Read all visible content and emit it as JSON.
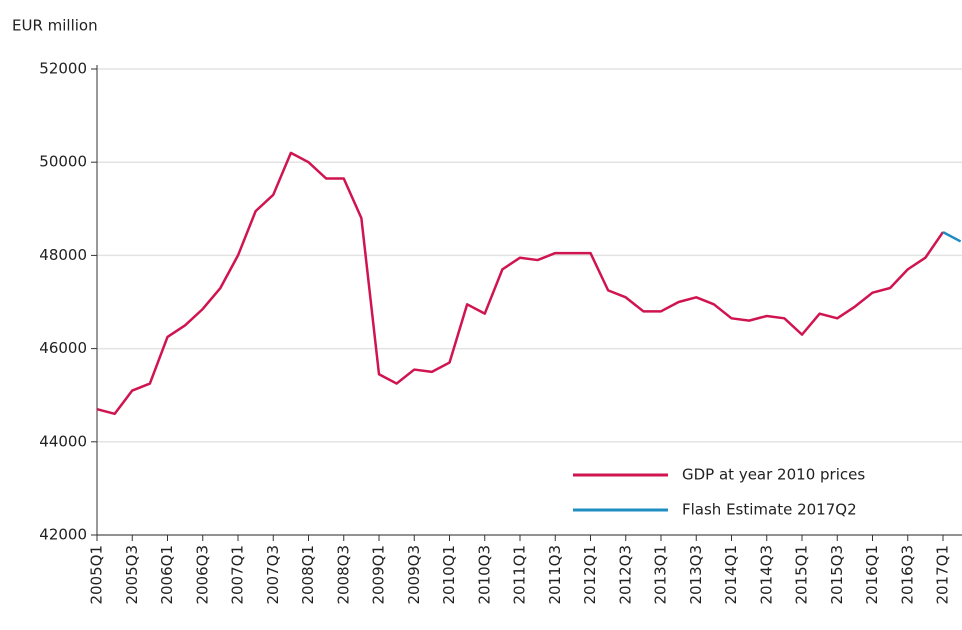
{
  "chart_data": {
    "type": "line",
    "y_label": "EUR million",
    "categories": [
      "2005Q1",
      null,
      "2005Q3",
      null,
      "2006Q1",
      null,
      "2006Q3",
      null,
      "2007Q1",
      null,
      "2007Q3",
      null,
      "2008Q1",
      null,
      "2008Q3",
      null,
      "2009Q1",
      null,
      "2009Q3",
      null,
      "2010Q1",
      null,
      "2010Q3",
      null,
      "2011Q1",
      null,
      "2011Q3",
      null,
      "2012Q1",
      null,
      "2012Q3",
      null,
      "2013Q1",
      null,
      "2013Q3",
      null,
      "2014Q1",
      null,
      "2014Q3",
      null,
      "2015Q1",
      null,
      "2015Q3",
      null,
      "2016Q1",
      null,
      "2016Q3",
      null,
      "2017Q1",
      null
    ],
    "series": [
      {
        "name": "GDP at year 2010 prices",
        "color": "#cf1450",
        "values": [
          44700,
          44600,
          45100,
          45250,
          46250,
          46500,
          46850,
          47300,
          48000,
          48950,
          49300,
          50200,
          50000,
          49650,
          49650,
          48800,
          45450,
          45250,
          45550,
          45500,
          45700,
          46950,
          46750,
          47700,
          47950,
          47900,
          48050,
          48050,
          48050,
          47250,
          47100,
          46800,
          46800,
          47000,
          47100,
          46950,
          46650,
          46600,
          46700,
          46650,
          46300,
          46750,
          46650,
          46900,
          47200,
          47300,
          47700,
          47950,
          48500,
          null
        ]
      },
      {
        "name": "Flash Estimate 2017Q2",
        "color": "#1f8cc2",
        "values": [
          null,
          null,
          null,
          null,
          null,
          null,
          null,
          null,
          null,
          null,
          null,
          null,
          null,
          null,
          null,
          null,
          null,
          null,
          null,
          null,
          null,
          null,
          null,
          null,
          null,
          null,
          null,
          null,
          null,
          null,
          null,
          null,
          null,
          null,
          null,
          null,
          null,
          null,
          null,
          null,
          null,
          null,
          null,
          null,
          null,
          null,
          null,
          null,
          48500,
          48300
        ]
      }
    ],
    "ylim": [
      42000,
      52000
    ],
    "yticks": [
      42000,
      44000,
      46000,
      48000,
      50000,
      52000
    ],
    "grid": true,
    "legend": "lower right"
  }
}
